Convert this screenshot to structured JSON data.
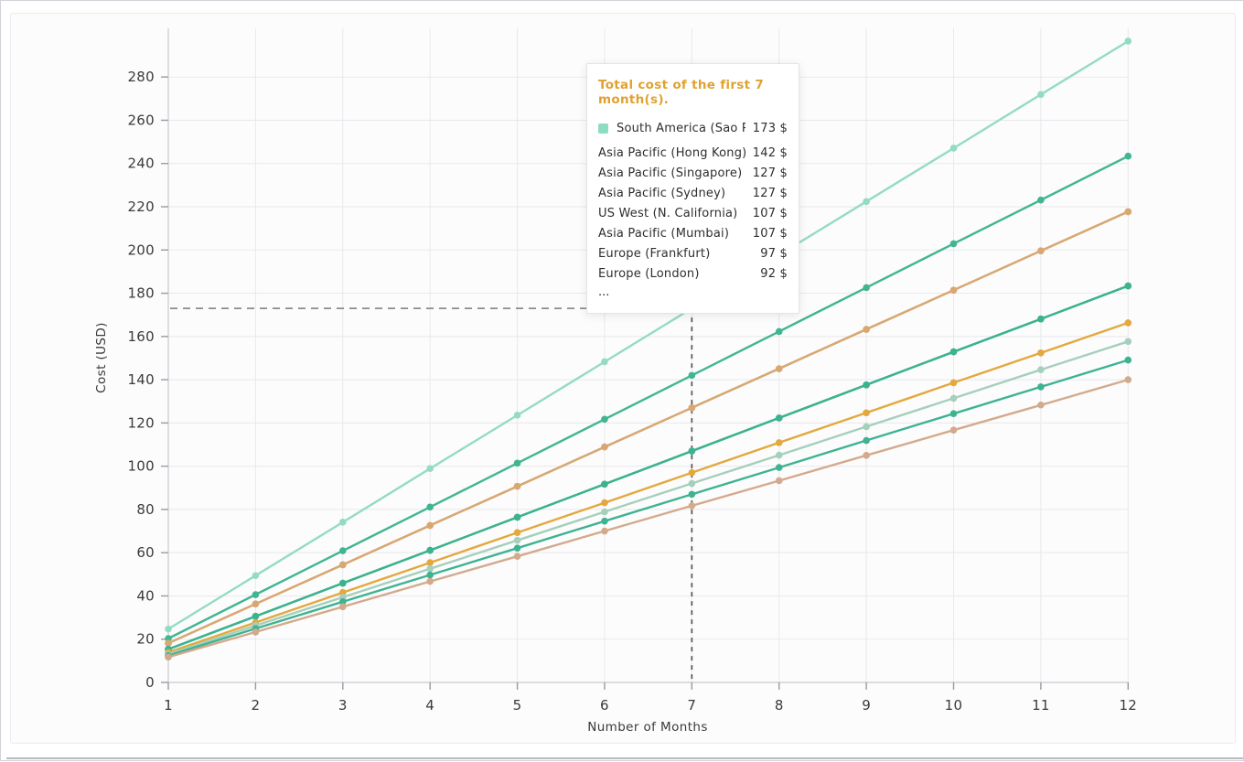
{
  "tooltip": {
    "title": "Total cost of the first 7 month(s).",
    "title_color": "#dfa231",
    "rows": [
      {
        "label": "South America (Sao Paulo)",
        "value": "173 $",
        "marker": true,
        "marker_color": "#8edcc2"
      },
      {
        "label": "Asia Pacific (Hong Kong)",
        "value": "142 $",
        "marker": false
      },
      {
        "label": "Asia Pacific (Singapore)",
        "value": "127 $",
        "marker": false
      },
      {
        "label": "Asia Pacific (Sydney)",
        "value": "127 $",
        "marker": false
      },
      {
        "label": "US West (N. California)",
        "value": "107 $",
        "marker": false
      },
      {
        "label": "Asia Pacific (Mumbai)",
        "value": "107 $",
        "marker": false
      },
      {
        "label": "Europe (Frankfurt)",
        "value": "97 $",
        "marker": false
      },
      {
        "label": "Europe (London)",
        "value": "92 $",
        "marker": false
      }
    ],
    "more_indicator": "..."
  },
  "chart_data": {
    "type": "line",
    "title": "",
    "xlabel": "Number of Months",
    "ylabel": "Cost (USD)",
    "x": [
      1,
      2,
      3,
      4,
      5,
      6,
      7,
      8,
      9,
      10,
      11,
      12
    ],
    "x_ticks": [
      1,
      2,
      3,
      4,
      5,
      6,
      7,
      8,
      9,
      10,
      11,
      12
    ],
    "y_ticks": [
      0,
      20,
      40,
      60,
      80,
      100,
      120,
      140,
      160,
      180,
      200,
      220,
      240,
      260,
      280
    ],
    "xlim": [
      1,
      12
    ],
    "ylim": [
      0,
      302
    ],
    "grid": true,
    "legend_position": "tooltip-overlay",
    "crosshair": {
      "x": 7,
      "y": 173
    },
    "series": [
      {
        "name": "South America (Sao Paulo)",
        "color": "#94dcc1",
        "values": [
          24.7,
          49.4,
          74.1,
          98.9,
          123.6,
          148.3,
          173,
          197.7,
          222.4,
          247.1,
          271.9,
          296.6
        ]
      },
      {
        "name": "Asia Pacific (Hong Kong)",
        "color": "#41b591",
        "values": [
          20.3,
          40.6,
          60.9,
          81.1,
          101.4,
          121.7,
          142,
          162.3,
          182.6,
          202.9,
          223.1,
          243.4
        ]
      },
      {
        "name": "Asia Pacific (Singapore)",
        "color": "#d8a873",
        "values": [
          18.1,
          36.3,
          54.4,
          72.6,
          90.7,
          108.9,
          127,
          145.1,
          163.3,
          181.4,
          199.6,
          217.7
        ]
      },
      {
        "name": "Asia Pacific (Sydney)",
        "color": "#d8a873",
        "values": [
          18.1,
          36.3,
          54.4,
          72.6,
          90.7,
          108.9,
          127,
          145.1,
          163.3,
          181.4,
          199.6,
          217.7
        ]
      },
      {
        "name": "US West (N. California)",
        "color": "#3cb28e",
        "values": [
          15.3,
          30.6,
          45.9,
          61.1,
          76.4,
          91.7,
          107,
          122.3,
          137.6,
          152.9,
          168.1,
          183.4
        ]
      },
      {
        "name": "Asia Pacific (Mumbai)",
        "color": "#3cb28e",
        "values": [
          15.3,
          30.6,
          45.9,
          61.1,
          76.4,
          91.7,
          107,
          122.3,
          137.6,
          152.9,
          168.1,
          183.4
        ]
      },
      {
        "name": "Europe (Frankfurt)",
        "color": "#e3a83e",
        "values": [
          13.9,
          27.7,
          41.6,
          55.4,
          69.3,
          83.1,
          97,
          110.9,
          124.7,
          138.6,
          152.4,
          166.3
        ]
      },
      {
        "name": "Europe (London)",
        "color": "#a6cfbc",
        "values": [
          13.1,
          26.3,
          39.4,
          52.6,
          65.7,
          78.9,
          92,
          105.1,
          118.3,
          131.4,
          144.6,
          157.7
        ]
      },
      {
        "name": "",
        "color": "#3eb391",
        "values": [
          12.4,
          24.9,
          37.3,
          49.7,
          62.1,
          74.6,
          87,
          99.4,
          111.9,
          124.3,
          136.7,
          149.1
        ]
      },
      {
        "name": "",
        "color": "#d3aa8c",
        "values": [
          11.7,
          23.3,
          35,
          46.7,
          58.3,
          70,
          81.7,
          93.3,
          105,
          116.7,
          128.3,
          140
        ]
      }
    ],
    "colors": {
      "grid": "#e9e9ed",
      "axis": "#c9c9cf",
      "tick": "#9a9aa0",
      "text": "#3a3a3a",
      "crosshair_h": "#8c8c8c",
      "crosshair_v": "#555555"
    }
  }
}
